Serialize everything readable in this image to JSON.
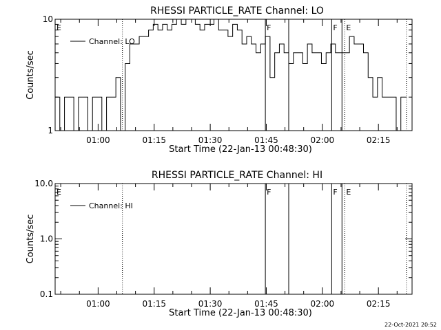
{
  "chart_data": [
    {
      "type": "line",
      "title": "RHESSI PARTICLE_RATE Channel: LO",
      "xlabel": "Start Time (22-Jan-13 00:48:30)",
      "ylabel": "Counts/sec",
      "yscale": "log",
      "ylim": [
        1,
        10
      ],
      "xlim": [
        "00:48:30",
        "02:24:00"
      ],
      "x_ticks": [
        "01:00",
        "01:15",
        "01:30",
        "01:45",
        "02:00",
        "02:15"
      ],
      "y_ticks": [
        "1",
        "10"
      ],
      "legend": [
        "Channel: LO"
      ],
      "legend_position": "top-left",
      "grid": false,
      "series": [
        {
          "name": "Channel: LO",
          "color": "#000000",
          "x": [
            "00:48:30",
            "00:49:45",
            "00:51:00",
            "00:52:15",
            "00:53:30",
            "00:54:45",
            "00:56:00",
            "00:57:15",
            "00:58:30",
            "00:59:45",
            "01:01:00",
            "01:02:15",
            "01:03:30",
            "01:04:45",
            "01:06:00",
            "01:06:30",
            "01:07:15",
            "01:08:30",
            "01:09:45",
            "01:11:00",
            "01:12:15",
            "01:13:30",
            "01:14:45",
            "01:16:00",
            "01:17:15",
            "01:18:30",
            "01:19:45",
            "01:21:00",
            "01:22:15",
            "01:23:30",
            "01:24:45",
            "01:26:00",
            "01:27:15",
            "01:28:30",
            "01:29:45",
            "01:31:00",
            "01:32:15",
            "01:33:30",
            "01:34:45",
            "01:36:00",
            "01:37:15",
            "01:38:30",
            "01:39:45",
            "01:41:00",
            "01:42:15",
            "01:43:30",
            "01:44:45",
            "01:46:00",
            "01:47:15",
            "01:48:30",
            "01:49:45",
            "01:51:00",
            "01:52:15",
            "01:53:30",
            "01:54:45",
            "01:56:00",
            "01:57:15",
            "01:58:30",
            "01:59:45",
            "02:01:00",
            "02:02:15",
            "02:03:30",
            "02:04:45",
            "02:06:00",
            "02:07:15",
            "02:08:30",
            "02:09:45",
            "02:11:00",
            "02:12:15",
            "02:13:30",
            "02:14:45",
            "02:16:00",
            "02:17:15",
            "02:18:30",
            "02:19:45",
            "02:21:00",
            "02:22:00"
          ],
          "y": [
            2,
            1,
            2,
            2,
            1,
            2,
            2,
            1,
            2,
            2,
            1,
            2,
            2,
            3,
            1,
            1,
            4,
            6,
            6,
            7,
            7,
            8,
            9,
            8,
            9,
            8,
            9,
            10,
            9,
            10,
            10,
            9,
            8,
            9,
            9,
            10,
            8,
            8,
            7,
            9,
            8,
            6,
            7,
            6,
            5,
            6,
            7,
            3,
            5,
            6,
            5,
            4,
            5,
            5,
            4,
            6,
            5,
            5,
            4,
            5,
            6,
            5,
            5,
            5,
            7,
            6,
            6,
            5,
            3,
            2,
            3,
            2,
            2,
            2,
            1,
            2,
            2
          ]
        }
      ],
      "annotations": [
        {
          "label": "E",
          "x": "00:48:30"
        },
        {
          "label": "F",
          "x": "01:44:45"
        },
        {
          "label": "F",
          "x": "02:02:30"
        },
        {
          "label": "E",
          "x": "02:06:00"
        }
      ],
      "solid_vlines": [
        "01:44:45",
        "01:51:00",
        "02:02:30",
        "02:05:15"
      ],
      "dotted_vlines": [
        "01:06:30",
        "02:06:00",
        "02:22:30"
      ]
    },
    {
      "type": "line",
      "title": "RHESSI PARTICLE_RATE Channel: HI",
      "xlabel": "Start Time (22-Jan-13 00:48:30)",
      "ylabel": "Counts/sec",
      "yscale": "log",
      "ylim": [
        0.1,
        10.0
      ],
      "xlim": [
        "00:48:30",
        "02:24:00"
      ],
      "x_ticks": [
        "01:00",
        "01:15",
        "01:30",
        "01:45",
        "02:00",
        "02:15"
      ],
      "y_ticks": [
        "0.1",
        "1.0",
        "10.0"
      ],
      "legend": [
        "Channel: HI"
      ],
      "legend_position": "top-left",
      "grid": false,
      "series": [
        {
          "name": "Channel: HI",
          "color": "#000000",
          "x": [],
          "y": []
        }
      ],
      "annotations": [
        {
          "label": "E",
          "x": "00:48:30"
        },
        {
          "label": "F",
          "x": "01:44:45"
        },
        {
          "label": "F",
          "x": "02:02:30"
        },
        {
          "label": "E",
          "x": "02:06:00"
        }
      ],
      "solid_vlines": [
        "01:44:45",
        "01:51:00",
        "02:02:30",
        "02:05:15"
      ],
      "dotted_vlines": [
        "01:06:30",
        "02:06:00",
        "02:22:30"
      ]
    }
  ],
  "footer": "22-Oct-2021 20:52"
}
